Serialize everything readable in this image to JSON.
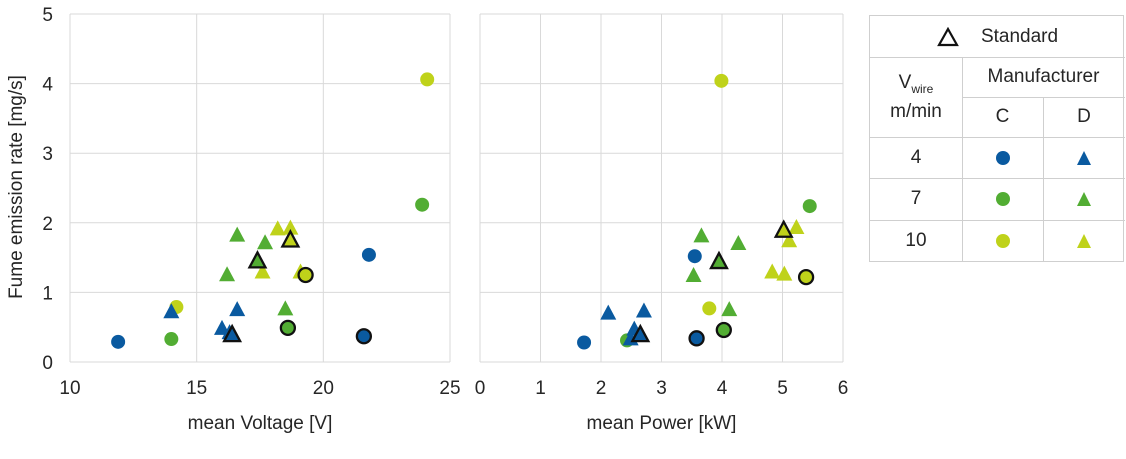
{
  "chart_data": [
    {
      "type": "scatter",
      "xlabel": "mean Voltage [V]",
      "ylabel": "Fume emission rate [mg/s]",
      "xlim": [
        10,
        25
      ],
      "ylim": [
        0,
        5
      ],
      "xticks": [
        "10",
        "15",
        "20",
        "25"
      ],
      "yticks": [
        "0",
        "1",
        "2",
        "3",
        "4",
        "5"
      ],
      "grid": true,
      "series": [
        {
          "manufacturer": "C",
          "wire_speed": "4",
          "marker": "circle",
          "color": "#0a5aa0",
          "points": [
            [
              11.9,
              0.29
            ],
            [
              21.8,
              1.54
            ]
          ]
        },
        {
          "manufacturer": "C",
          "wire_speed": "7",
          "marker": "circle",
          "color": "#52ad33",
          "points": [
            [
              14.0,
              0.33
            ],
            [
              23.9,
              2.26
            ]
          ]
        },
        {
          "manufacturer": "C",
          "wire_speed": "10",
          "marker": "circle",
          "color": "#bfd21a",
          "points": [
            [
              14.2,
              0.79
            ],
            [
              24.1,
              4.06
            ]
          ]
        },
        {
          "manufacturer": "D",
          "wire_speed": "4",
          "marker": "triangle",
          "color": "#0a5aa0",
          "points": [
            [
              14.0,
              0.73
            ],
            [
              16.0,
              0.49
            ],
            [
              16.6,
              0.76
            ],
            [
              16.3,
              0.43
            ]
          ]
        },
        {
          "manufacturer": "D",
          "wire_speed": "7",
          "marker": "triangle",
          "color": "#52ad33",
          "points": [
            [
              16.6,
              1.83
            ],
            [
              16.2,
              1.26
            ],
            [
              17.7,
              1.72
            ],
            [
              18.5,
              0.77
            ]
          ]
        },
        {
          "manufacturer": "D",
          "wire_speed": "10",
          "marker": "triangle",
          "color": "#bfd21a",
          "points": [
            [
              18.2,
              1.92
            ],
            [
              18.7,
              1.93
            ],
            [
              17.6,
              1.3
            ],
            [
              19.1,
              1.3
            ]
          ]
        },
        {
          "manufacturer": "Standard",
          "wire_speed": "4",
          "marker": "circle-outlined",
          "color": "#0a5aa0",
          "points": [
            [
              21.6,
              0.37
            ]
          ]
        },
        {
          "manufacturer": "Standard",
          "wire_speed": "7",
          "marker": "circle-outlined",
          "color": "#52ad33",
          "points": [
            [
              18.6,
              0.49
            ]
          ]
        },
        {
          "manufacturer": "Standard",
          "wire_speed": "10",
          "marker": "circle-outlined",
          "color": "#bfd21a",
          "points": [
            [
              19.3,
              1.25
            ]
          ]
        },
        {
          "manufacturer": "Standard",
          "wire_speed": "4",
          "marker": "triangle-outlined",
          "color": "#0a5aa0",
          "points": [
            [
              16.4,
              0.4
            ]
          ]
        },
        {
          "manufacturer": "Standard",
          "wire_speed": "7",
          "marker": "triangle-outlined",
          "color": "#52ad33",
          "points": [
            [
              17.4,
              1.46
            ]
          ]
        },
        {
          "manufacturer": "Standard",
          "wire_speed": "10",
          "marker": "triangle-outlined",
          "color": "#bfd21a",
          "points": [
            [
              18.7,
              1.76
            ]
          ]
        }
      ]
    },
    {
      "type": "scatter",
      "xlabel": "mean Power [kW]",
      "ylabel": "",
      "xlim": [
        0,
        6
      ],
      "ylim": [
        0,
        5
      ],
      "xticks": [
        "0",
        "1",
        "2",
        "3",
        "4",
        "5",
        "6"
      ],
      "grid": true,
      "series": [
        {
          "manufacturer": "C",
          "wire_speed": "4",
          "marker": "circle",
          "color": "#0a5aa0",
          "points": [
            [
              1.72,
              0.28
            ],
            [
              3.55,
              1.52
            ]
          ]
        },
        {
          "manufacturer": "C",
          "wire_speed": "7",
          "marker": "circle",
          "color": "#52ad33",
          "points": [
            [
              2.43,
              0.31
            ],
            [
              5.45,
              2.24
            ]
          ]
        },
        {
          "manufacturer": "C",
          "wire_speed": "10",
          "marker": "circle",
          "color": "#bfd21a",
          "points": [
            [
              3.79,
              0.77
            ],
            [
              3.99,
              4.04
            ]
          ]
        },
        {
          "manufacturer": "D",
          "wire_speed": "4",
          "marker": "triangle",
          "color": "#0a5aa0",
          "points": [
            [
              2.12,
              0.71
            ],
            [
              2.71,
              0.74
            ],
            [
              2.55,
              0.48
            ],
            [
              2.49,
              0.34
            ]
          ]
        },
        {
          "manufacturer": "D",
          "wire_speed": "7",
          "marker": "triangle",
          "color": "#52ad33",
          "points": [
            [
              3.66,
              1.82
            ],
            [
              3.53,
              1.25
            ],
            [
              4.27,
              1.71
            ],
            [
              4.12,
              0.76
            ]
          ]
        },
        {
          "manufacturer": "D",
          "wire_speed": "10",
          "marker": "triangle",
          "color": "#bfd21a",
          "points": [
            [
              5.23,
              1.94
            ],
            [
              5.11,
              1.75
            ],
            [
              4.83,
              1.3
            ],
            [
              5.03,
              1.27
            ]
          ]
        },
        {
          "manufacturer": "Standard",
          "wire_speed": "4",
          "marker": "circle-outlined",
          "color": "#0a5aa0",
          "points": [
            [
              3.58,
              0.34
            ]
          ]
        },
        {
          "manufacturer": "Standard",
          "wire_speed": "7",
          "marker": "circle-outlined",
          "color": "#52ad33",
          "points": [
            [
              4.03,
              0.46
            ]
          ]
        },
        {
          "manufacturer": "Standard",
          "wire_speed": "10",
          "marker": "circle-outlined",
          "color": "#bfd21a",
          "points": [
            [
              5.39,
              1.22
            ]
          ]
        },
        {
          "manufacturer": "Standard",
          "wire_speed": "4",
          "marker": "triangle-outlined",
          "color": "#0a5aa0",
          "points": [
            [
              2.65,
              0.4
            ]
          ]
        },
        {
          "manufacturer": "Standard",
          "wire_speed": "7",
          "marker": "triangle-outlined",
          "color": "#52ad33",
          "points": [
            [
              3.95,
              1.45
            ]
          ]
        },
        {
          "manufacturer": "Standard",
          "wire_speed": "10",
          "marker": "triangle-outlined",
          "color": "#bfd21a",
          "points": [
            [
              5.02,
              1.9
            ]
          ]
        }
      ]
    }
  ],
  "legend": {
    "standard_label": "Standard",
    "vwire_main": "V",
    "vwire_sub": "wire",
    "vwire_unit": "m/min",
    "manufacturer_label": "Manufacturer",
    "col_c": "C",
    "col_d": "D",
    "rows": [
      {
        "speed": "4",
        "color": "#0a5aa0"
      },
      {
        "speed": "7",
        "color": "#52ad33"
      },
      {
        "speed": "10",
        "color": "#bfd21a"
      }
    ]
  }
}
